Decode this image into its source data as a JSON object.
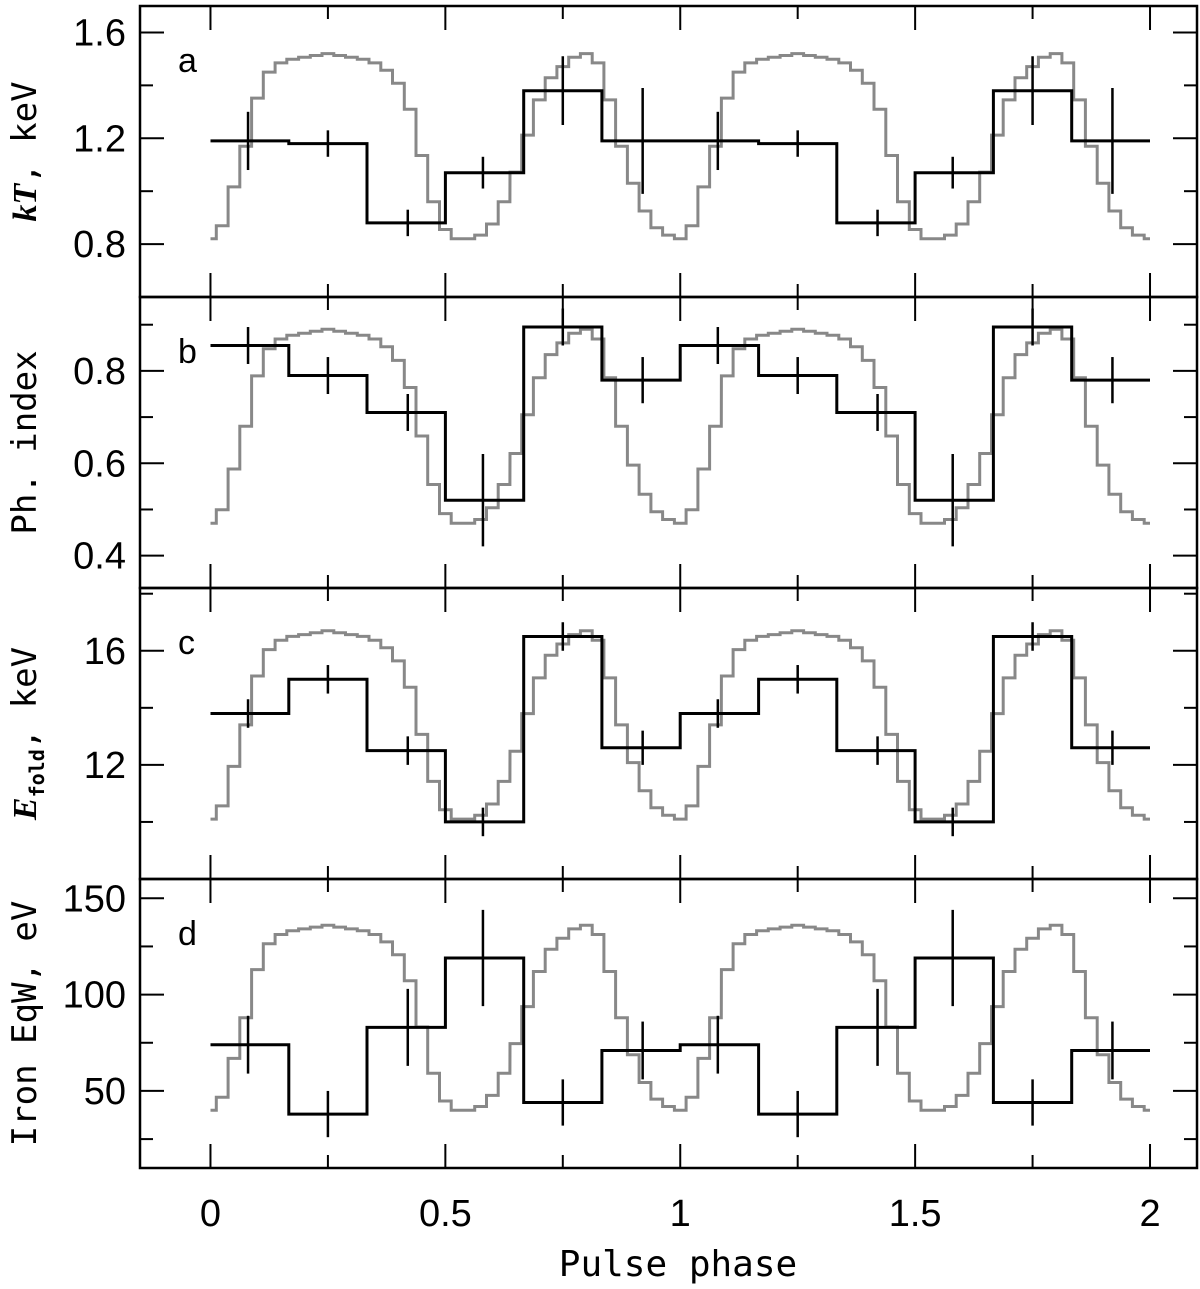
{
  "chart_data": {
    "type": "line",
    "x_axis": {
      "label": "Pulse phase",
      "range": [
        -0.15,
        2.1
      ],
      "ticks": [
        0,
        0.5,
        1,
        1.5,
        2
      ],
      "tick_labels": [
        "0",
        "0.5",
        "1",
        "1.5",
        "2"
      ],
      "minor_tick_step": 0.25
    },
    "pulse_profile": {
      "color": "#888888",
      "style": "step",
      "x": [
        0,
        0.025,
        0.05,
        0.075,
        0.1,
        0.125,
        0.15,
        0.175,
        0.2,
        0.225,
        0.25,
        0.275,
        0.3,
        0.325,
        0.35,
        0.375,
        0.4,
        0.425,
        0.45,
        0.475,
        0.5,
        0.525,
        0.55,
        0.575,
        0.6,
        0.625,
        0.65,
        0.675,
        0.7,
        0.725,
        0.75,
        0.775,
        0.8,
        0.825,
        0.85,
        0.875,
        0.9,
        0.925,
        0.95,
        0.975,
        1.0,
        1.025,
        1.05,
        1.075,
        1.1,
        1.125,
        1.15,
        1.175,
        1.2,
        1.225,
        1.25,
        1.275,
        1.3,
        1.325,
        1.35,
        1.375,
        1.4,
        1.425,
        1.45,
        1.475,
        1.5,
        1.525,
        1.55,
        1.575,
        1.6,
        1.625,
        1.65,
        1.675,
        1.7,
        1.725,
        1.75,
        1.775,
        1.8,
        1.825,
        1.85,
        1.875,
        1.9,
        1.925,
        1.95,
        1.975,
        2.0
      ],
      "shape": [
        0.0,
        0.07,
        0.28,
        0.5,
        0.76,
        0.9,
        0.95,
        0.97,
        0.98,
        0.99,
        1.0,
        0.99,
        0.98,
        0.97,
        0.95,
        0.91,
        0.84,
        0.7,
        0.45,
        0.2,
        0.05,
        0.0,
        0.0,
        0.02,
        0.08,
        0.2,
        0.36,
        0.56,
        0.75,
        0.87,
        0.93,
        0.98,
        1.0,
        0.95,
        0.75,
        0.5,
        0.3,
        0.15,
        0.06,
        0.02,
        0.0,
        0.07,
        0.28,
        0.5,
        0.76,
        0.9,
        0.95,
        0.97,
        0.98,
        0.99,
        1.0,
        0.99,
        0.98,
        0.97,
        0.95,
        0.91,
        0.84,
        0.7,
        0.45,
        0.2,
        0.05,
        0.0,
        0.0,
        0.02,
        0.08,
        0.2,
        0.36,
        0.56,
        0.75,
        0.87,
        0.93,
        0.98,
        1.0,
        0.95,
        0.75,
        0.5,
        0.3,
        0.15,
        0.06,
        0.02,
        0.0
      ],
      "scale_per_panel": [
        [
          0.82,
          1.52
        ],
        [
          0.47,
          0.89
        ],
        [
          10.1,
          16.7
        ],
        [
          40,
          136
        ]
      ]
    },
    "panels": [
      {
        "letter": "a",
        "ylabel": "kT, keV",
        "ylim": [
          0.6,
          1.7
        ],
        "y_ticks": [
          0.8,
          1.2,
          1.6
        ],
        "y_tick_labels": [
          "0.8",
          "1.2",
          "1.6"
        ],
        "minor_tick_step": 0.2,
        "series": [
          {
            "style": "step-with-errors",
            "bin_edges": [
              0,
              0.1667,
              0.3333,
              0.5,
              0.6667,
              0.8333,
              1.0,
              1.1667,
              1.3333,
              1.5,
              1.6667,
              1.8333,
              2.0
            ],
            "y": [
              1.19,
              1.18,
              0.88,
              1.07,
              1.38,
              1.19,
              1.19,
              1.18,
              0.88,
              1.07,
              1.38,
              1.19
            ],
            "marker_x": [
              0.08,
              0.25,
              0.42,
              0.58,
              0.75,
              0.92,
              1.08,
              1.25,
              1.42,
              1.58,
              1.75,
              1.92
            ],
            "err": [
              0.11,
              0.05,
              0.05,
              0.06,
              0.13,
              0.2,
              0.11,
              0.05,
              0.05,
              0.06,
              0.13,
              0.2
            ]
          }
        ]
      },
      {
        "letter": "b",
        "ylabel": "Ph. index",
        "ylim": [
          0.33,
          0.96
        ],
        "y_ticks": [
          0.4,
          0.6,
          0.8
        ],
        "y_tick_labels": [
          "0.4",
          "0.6",
          "0.8"
        ],
        "minor_tick_step": 0.1,
        "series": [
          {
            "style": "step-with-errors",
            "bin_edges": [
              0,
              0.1667,
              0.3333,
              0.5,
              0.6667,
              0.8333,
              1.0,
              1.1667,
              1.3333,
              1.5,
              1.6667,
              1.8333,
              2.0
            ],
            "y": [
              0.855,
              0.79,
              0.71,
              0.52,
              0.895,
              0.78,
              0.855,
              0.79,
              0.71,
              0.52,
              0.895,
              0.78
            ],
            "marker_x": [
              0.08,
              0.25,
              0.42,
              0.58,
              0.75,
              0.92,
              1.08,
              1.25,
              1.42,
              1.58,
              1.75,
              1.92
            ],
            "err": [
              0.04,
              0.04,
              0.04,
              0.1,
              0.04,
              0.05,
              0.04,
              0.04,
              0.04,
              0.1,
              0.04,
              0.05
            ]
          }
        ]
      },
      {
        "letter": "c",
        "ylabel": "E_fold, keV",
        "ylim": [
          8.0,
          18.2
        ],
        "y_ticks": [
          12,
          16
        ],
        "y_tick_labels": [
          "12",
          "16"
        ],
        "minor_tick_step": 2,
        "series": [
          {
            "style": "step-with-errors",
            "bin_edges": [
              0,
              0.1667,
              0.3333,
              0.5,
              0.6667,
              0.8333,
              1.0,
              1.1667,
              1.3333,
              1.5,
              1.6667,
              1.8333,
              2.0
            ],
            "y": [
              13.8,
              15.0,
              12.5,
              10.0,
              16.5,
              12.6,
              13.8,
              15.0,
              12.5,
              10.0,
              16.5,
              12.6
            ],
            "marker_x": [
              0.08,
              0.25,
              0.42,
              0.58,
              0.75,
              0.92,
              1.08,
              1.25,
              1.42,
              1.58,
              1.75,
              1.92
            ],
            "err": [
              0.5,
              0.5,
              0.5,
              0.5,
              0.5,
              0.6,
              0.5,
              0.5,
              0.5,
              0.5,
              0.5,
              0.6
            ]
          }
        ]
      },
      {
        "letter": "d",
        "ylabel": "Iron EqW, eV",
        "ylim": [
          10,
          160
        ],
        "y_ticks": [
          50,
          100,
          150
        ],
        "y_tick_labels": [
          "50",
          "100",
          "150"
        ],
        "minor_tick_step": 25,
        "series": [
          {
            "style": "step-with-errors",
            "bin_edges": [
              0,
              0.1667,
              0.3333,
              0.5,
              0.6667,
              0.8333,
              1.0,
              1.1667,
              1.3333,
              1.5,
              1.6667,
              1.8333,
              2.0
            ],
            "y": [
              74,
              38,
              83,
              119,
              44,
              71,
              74,
              38,
              83,
              119,
              44,
              71
            ],
            "marker_x": [
              0.08,
              0.25,
              0.42,
              0.58,
              0.75,
              0.92,
              1.08,
              1.25,
              1.42,
              1.58,
              1.75,
              1.92
            ],
            "err": [
              15,
              12,
              20,
              25,
              12,
              15,
              15,
              12,
              20,
              25,
              12,
              15
            ]
          }
        ]
      }
    ]
  }
}
